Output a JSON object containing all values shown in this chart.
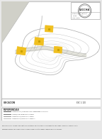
{
  "bg_color": "#e8e8e8",
  "map_bg": "#ffffff",
  "border_color": "#aaaaaa",
  "topo_color": "#aaaaaa",
  "road_color": "#cccccc",
  "yellow_color": "#f0c020",
  "yellow_edge": "#c8a000",
  "dark_color": "#333333",
  "gray_color": "#777777",
  "logo_text": "LECCHA",
  "logo_sub": "ARQUITECTURA",
  "ref_text": "REFERENCIAS",
  "scale_text": "ESC 1:100",
  "location_text": "UBICACION",
  "legend_items": [
    "ACCESO BARRIAL / CONEXION QUE NO CORRESPONDE AL PROYECTO",
    "ACCESO/CAMINO BARRIO ISLA DE PANELO",
    "ACCESO BARRIAL/CORTE DIGITAL BARRIAL",
    "ACCESO BARRIAL/CORTE DIGITAL BARRIAL 2"
  ],
  "credits_line1": "EQUIPO DOCENTE: Arminda Abuelhe Batali  Bianca De Brasi  Definitore  Delion  Elfang  Esperante  Gallo  Gaspar  Giambruno  Lawrence  Leiva",
  "credits_line2": "Marianges  Mazaglia  Pons  Preve  Radiglio  Recanda  Rimoldi  Robottini  Taverna  Vasquez  RECURSOS: Bolonero"
}
